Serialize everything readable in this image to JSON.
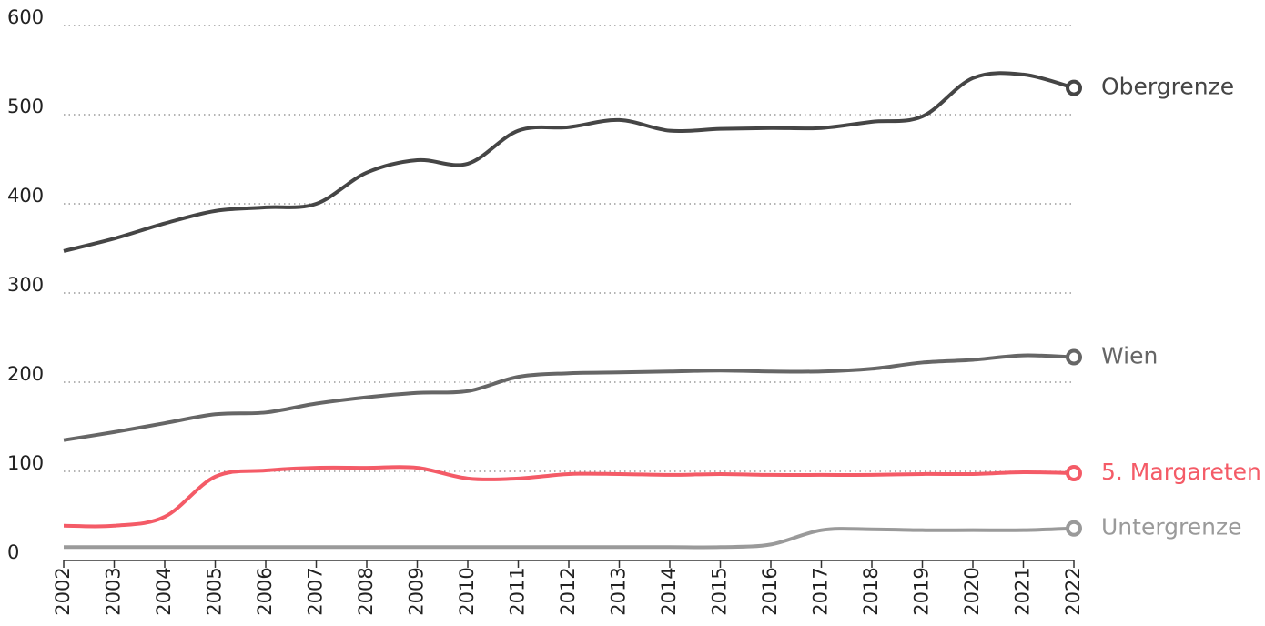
{
  "chart_data": {
    "type": "line",
    "categories": [
      "2002",
      "2003",
      "2004",
      "2005",
      "2006",
      "2007",
      "2008",
      "2009",
      "2010",
      "2011",
      "2012",
      "2013",
      "2014",
      "2015",
      "2016",
      "2017",
      "2018",
      "2019",
      "2020",
      "2021",
      "2022"
    ],
    "series": [
      {
        "name": "Obergrenze",
        "color": "#454545",
        "values": [
          347,
          361,
          378,
          392,
          396,
          400,
          435,
          449,
          445,
          482,
          486,
          494,
          482,
          484,
          485,
          485,
          492,
          498,
          541,
          545,
          530
        ]
      },
      {
        "name": "Wien",
        "color": "#666666",
        "values": [
          135,
          144,
          154,
          164,
          166,
          176,
          183,
          188,
          190,
          206,
          210,
          211,
          212,
          213,
          212,
          212,
          215,
          222,
          225,
          230,
          228
        ]
      },
      {
        "name": "5. Margareten",
        "color": "#f45b67",
        "values": [
          39,
          39,
          49,
          94,
          101,
          104,
          104,
          104,
          92,
          92,
          97,
          97,
          96,
          97,
          96,
          96,
          96,
          97,
          97,
          99,
          98
        ]
      },
      {
        "name": "Untergrenze",
        "color": "#9a9a9a",
        "values": [
          15,
          15,
          15,
          15,
          15,
          15,
          15,
          15,
          15,
          15,
          15,
          15,
          15,
          15,
          18,
          34,
          35,
          34,
          34,
          34,
          36
        ]
      }
    ],
    "ylim": [
      0,
      600
    ],
    "yticks": [
      0,
      100,
      200,
      300,
      400,
      500,
      600
    ],
    "grid": true
  }
}
